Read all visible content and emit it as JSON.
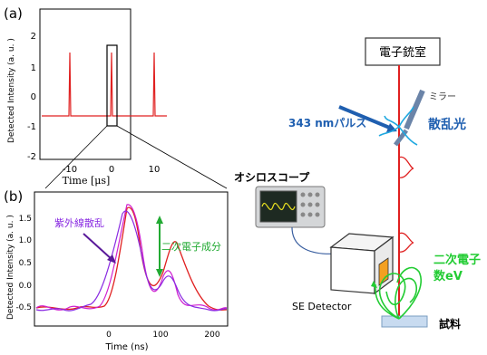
{
  "panel_a": {
    "label": "(a)",
    "ylabel": "Detected Intensity (a. u. )",
    "xlabel": "Time [μs]",
    "yticks": [
      "2",
      "1",
      "0",
      "-1",
      "-2"
    ],
    "xticks": [
      "-10",
      "0",
      "10"
    ]
  },
  "panel_b": {
    "label": "(b)",
    "ylabel": "Detected Intensity (a. u. )",
    "xlabel": "Time (ns)",
    "yticks": [
      "1.5",
      "1.0",
      "0.5",
      "0.0",
      "-0.5"
    ],
    "xticks": [
      "0",
      "100",
      "200"
    ],
    "annot_uv": "紫外線散乱",
    "annot_se": "二次電子成分"
  },
  "diagram": {
    "gun_chamber": "電子銃室",
    "mirror": "ミラー",
    "pulse": "343 nmパルス",
    "scattered_light": "散乱光",
    "oscilloscope": "オシロスコープ",
    "secondary_electrons_1": "二次電子",
    "secondary_electrons_2": "数eV",
    "se_detector": "SE Detector",
    "sample": "試料"
  },
  "colors": {
    "red": "#e02020",
    "purple": "#8a2be2",
    "magenta": "#d020d0",
    "green": "#22cc33",
    "blue": "#1f5fb0",
    "cyan": "#1fa8e0"
  }
}
